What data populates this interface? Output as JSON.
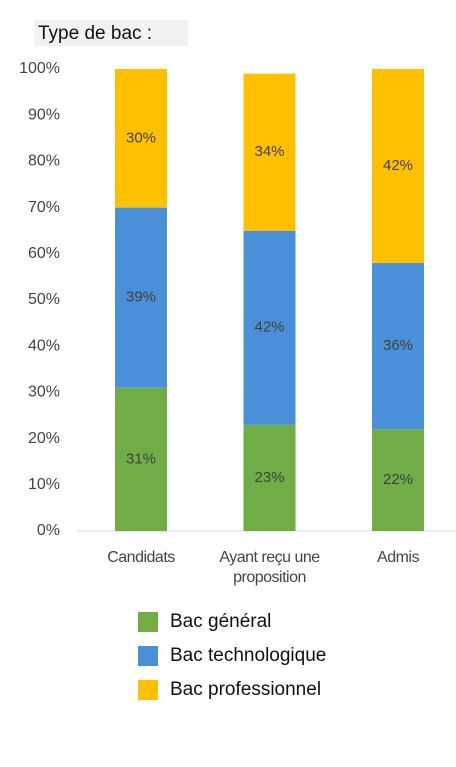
{
  "chart_data": {
    "type": "stacked_bar",
    "title": "Type de bac :",
    "categories": [
      "Candidats",
      "Ayant reçu une proposition",
      "Admis"
    ],
    "series": [
      {
        "name": "Bac général",
        "color": "#70ad47",
        "values": [
          31,
          23,
          22
        ],
        "value_labels": [
          "31%",
          "23%",
          "22%"
        ]
      },
      {
        "name": "Bac technologique",
        "color": "#4a90d9",
        "values": [
          39,
          42,
          36
        ],
        "value_labels": [
          "39%",
          "42%",
          "36%"
        ]
      },
      {
        "name": "Bac professionnel",
        "color": "#ffc000",
        "values": [
          30,
          34,
          42
        ],
        "value_labels": [
          "30%",
          "34%",
          "42%"
        ]
      }
    ],
    "ylim": [
      0,
      100
    ],
    "yticks": [
      {
        "value": 0,
        "label": "0%"
      },
      {
        "value": 10,
        "label": "10%"
      },
      {
        "value": 20,
        "label": "20%"
      },
      {
        "value": 30,
        "label": "30%"
      },
      {
        "value": 40,
        "label": "40%"
      },
      {
        "value": 50,
        "label": "50%"
      },
      {
        "value": 60,
        "label": "60%"
      },
      {
        "value": 70,
        "label": "70%"
      },
      {
        "value": 80,
        "label": "80%"
      },
      {
        "value": 90,
        "label": "90%"
      },
      {
        "value": 100,
        "label": "100%"
      }
    ],
    "legend": "bottom"
  }
}
